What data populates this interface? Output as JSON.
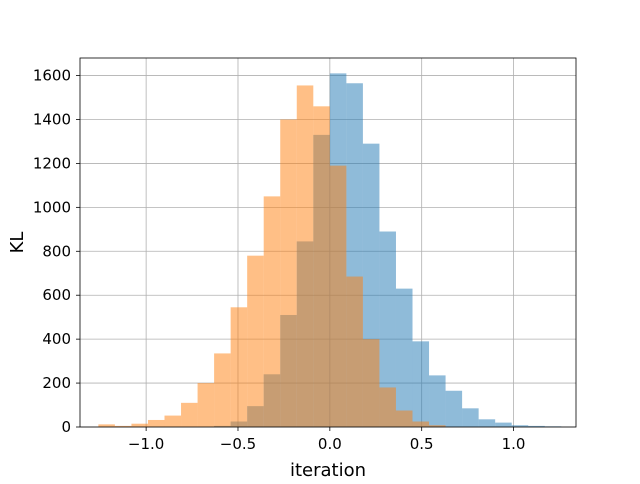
{
  "chart_data": {
    "type": "histogram",
    "xlabel": "iteration",
    "ylabel": "KL",
    "xlim": [
      -1.36,
      1.34
    ],
    "ylim": [
      0,
      1680
    ],
    "grid": true,
    "xticks": [
      -1.0,
      -0.5,
      0.0,
      0.5,
      1.0
    ],
    "xtick_labels": [
      "−1.0",
      "−0.5",
      "0.0",
      "0.5",
      "1.0"
    ],
    "yticks": [
      0,
      200,
      400,
      600,
      800,
      1000,
      1200,
      1400,
      1600
    ],
    "ytick_labels": [
      "0",
      "200",
      "400",
      "600",
      "800",
      "1000",
      "1200",
      "1400",
      "1600"
    ],
    "series": [
      {
        "color": "#1f77b4",
        "opacity": 0.5,
        "bin_edges": [
          -0.63,
          -0.54,
          -0.45,
          -0.36,
          -0.27,
          -0.18,
          -0.09,
          0.0,
          0.09,
          0.18,
          0.27,
          0.36,
          0.45,
          0.54,
          0.63,
          0.72,
          0.81,
          0.9,
          0.99,
          1.08,
          1.17,
          1.26
        ],
        "counts": [
          5,
          25,
          95,
          240,
          510,
          845,
          1330,
          1610,
          1565,
          1290,
          890,
          630,
          390,
          235,
          165,
          85,
          35,
          20,
          8,
          5,
          3
        ]
      },
      {
        "color": "#ff7f0e",
        "opacity": 0.5,
        "bin_edges": [
          -1.26,
          -1.17,
          -1.08,
          -0.99,
          -0.9,
          -0.81,
          -0.72,
          -0.63,
          -0.54,
          -0.45,
          -0.36,
          -0.27,
          -0.18,
          -0.09,
          0.0,
          0.09,
          0.18,
          0.27,
          0.36,
          0.45,
          0.54,
          0.63
        ],
        "counts": [
          12,
          5,
          15,
          32,
          52,
          110,
          200,
          335,
          545,
          780,
          1050,
          1400,
          1555,
          1460,
          1190,
          685,
          400,
          180,
          75,
          25,
          8
        ]
      }
    ]
  }
}
